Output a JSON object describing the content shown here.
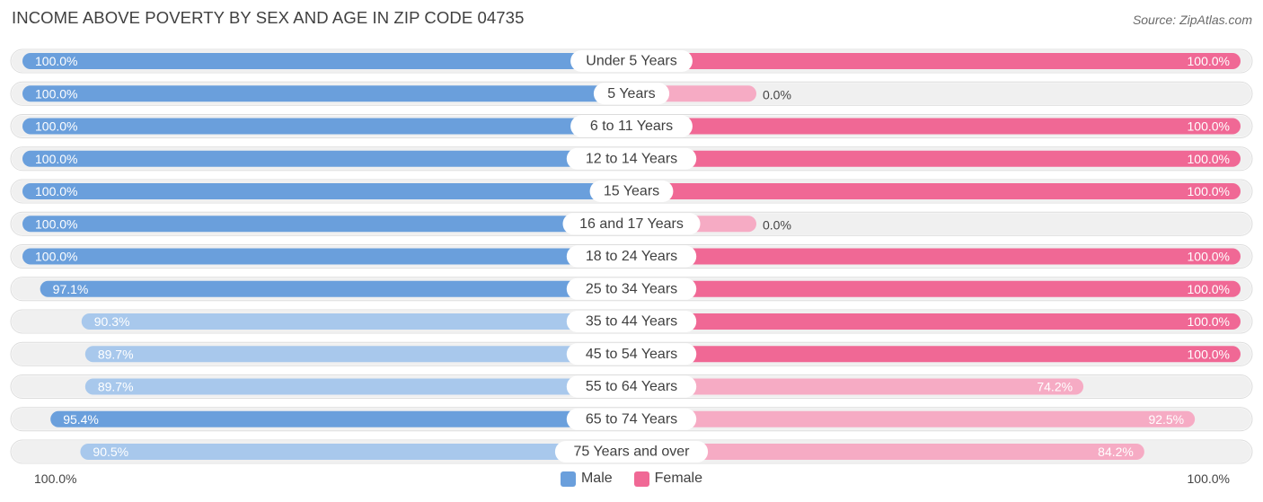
{
  "header": {
    "title": "INCOME ABOVE POVERTY BY SEX AND AGE IN ZIP CODE 04735",
    "source": "Source: ZipAtlas.com"
  },
  "axis": {
    "left_label": "100.0%",
    "right_label": "100.0%"
  },
  "legend": {
    "male": "Male",
    "female": "Female"
  },
  "colors": {
    "male_strong": "#6a9fdc",
    "male_light": "#a8c8ec",
    "female_strong": "#f06895",
    "female_light": "#f6abc4",
    "track": "#f0f0f0"
  },
  "chart_data": {
    "type": "bar",
    "orientation": "horizontal-diverging",
    "title": "INCOME ABOVE POVERTY BY SEX AND AGE IN ZIP CODE 04735",
    "categories": [
      "Under 5 Years",
      "5 Years",
      "6 to 11 Years",
      "12 to 14 Years",
      "15 Years",
      "16 and 17 Years",
      "18 to 24 Years",
      "25 to 34 Years",
      "35 to 44 Years",
      "45 to 54 Years",
      "55 to 64 Years",
      "65 to 74 Years",
      "75 Years and over"
    ],
    "series": [
      {
        "name": "Male",
        "values": [
          100.0,
          100.0,
          100.0,
          100.0,
          100.0,
          100.0,
          100.0,
          97.1,
          90.3,
          89.7,
          89.7,
          95.4,
          90.5
        ],
        "labels": [
          "100.0%",
          "100.0%",
          "100.0%",
          "100.0%",
          "100.0%",
          "100.0%",
          "100.0%",
          "97.1%",
          "90.3%",
          "89.7%",
          "89.7%",
          "95.4%",
          "90.5%"
        ]
      },
      {
        "name": "Female",
        "values": [
          100.0,
          0.0,
          100.0,
          100.0,
          100.0,
          0.0,
          100.0,
          100.0,
          100.0,
          100.0,
          74.2,
          92.5,
          84.2
        ],
        "labels": [
          "100.0%",
          "0.0%",
          "100.0%",
          "100.0%",
          "100.0%",
          "0.0%",
          "100.0%",
          "100.0%",
          "100.0%",
          "100.0%",
          "74.2%",
          "92.5%",
          "84.2%"
        ]
      }
    ],
    "xlim": [
      0,
      100
    ],
    "legend_position": "bottom-center"
  }
}
